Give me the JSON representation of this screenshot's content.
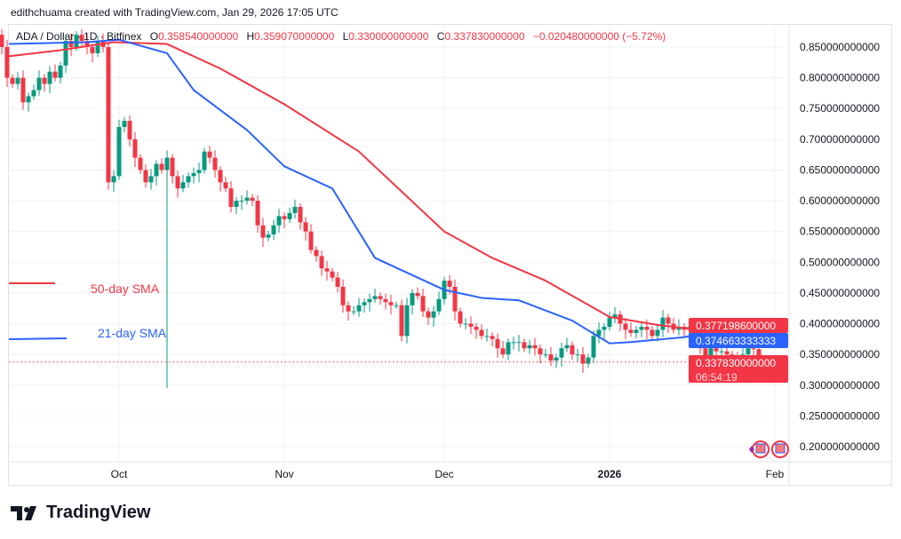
{
  "credit": "edithchuama created with TradingView.com, Jan 29, 2026 17:05 UTC",
  "legend": {
    "symbol": "ADA / Dollar · 1D · Bitfinex",
    "o_label": "O",
    "o": "0.358540000000",
    "h_label": "H",
    "h": "0.359070000000",
    "l_label": "L",
    "l": "0.330000000000",
    "c_label": "C",
    "c": "0.337830000000",
    "change": "−0.020480000000 (−5.72%)"
  },
  "sma_labels": {
    "sma50": "50-day SMA",
    "sma21": "21-day SMA"
  },
  "price_tags": {
    "sma50": "0.377198600000",
    "sma21": "0.374663333333",
    "last": "0.337830000000",
    "countdown": "06:54:19"
  },
  "logo": "TradingView",
  "colors": {
    "up": "#089981",
    "down": "#f23645",
    "sma50": "#f23645",
    "sma21": "#2962ff",
    "grid": "#f0f3fa"
  },
  "chart_data": {
    "type": "candlestick",
    "symbol": "ADA / Dollar",
    "interval": "1D",
    "exchange": "Bitfinex",
    "last_date": "2026-01-29",
    "ylim": [
      0.17,
      0.87
    ],
    "y_ticks": [
      "0.850000000000",
      "0.800000000000",
      "0.750000000000",
      "0.700000000000",
      "0.650000000000",
      "0.600000000000",
      "0.550000000000",
      "0.500000000000",
      "0.450000000000",
      "0.400000000000",
      "0.350000000000",
      "0.300000000000",
      "0.250000000000",
      "0.200000000000"
    ],
    "x_ticks": [
      {
        "label": "Oct",
        "date": "2025-10-01"
      },
      {
        "label": "Nov",
        "date": "2025-11-01"
      },
      {
        "label": "Dec",
        "date": "2025-12-01"
      },
      {
        "label": "2026",
        "date": "2026-01-01"
      },
      {
        "label": "Feb",
        "date": "2026-02-01"
      }
    ],
    "first_open": 0.85,
    "closes": [
      0.86,
      0.87,
      0.88,
      0.86,
      0.87,
      0.89,
      0.88,
      0.87,
      0.86,
      0.87,
      0.85,
      0.8,
      0.79,
      0.8,
      0.76,
      0.77,
      0.78,
      0.8,
      0.79,
      0.81,
      0.8,
      0.82,
      0.86,
      0.85,
      0.87,
      0.86,
      0.85,
      0.84,
      0.86,
      0.85,
      0.63,
      0.64,
      0.72,
      0.73,
      0.7,
      0.67,
      0.65,
      0.63,
      0.64,
      0.66,
      0.65,
      0.67,
      0.64,
      0.62,
      0.63,
      0.64,
      0.645,
      0.65,
      0.68,
      0.67,
      0.65,
      0.63,
      0.62,
      0.59,
      0.6,
      0.6,
      0.605,
      0.6,
      0.56,
      0.54,
      0.545,
      0.56,
      0.575,
      0.57,
      0.58,
      0.59,
      0.565,
      0.55,
      0.52,
      0.51,
      0.49,
      0.485,
      0.475,
      0.46,
      0.43,
      0.42,
      0.42,
      0.43,
      0.435,
      0.44,
      0.445,
      0.44,
      0.435,
      0.43,
      0.43,
      0.38,
      0.43,
      0.45,
      0.445,
      0.42,
      0.41,
      0.42,
      0.44,
      0.47,
      0.46,
      0.42,
      0.4,
      0.4,
      0.395,
      0.39,
      0.38,
      0.38,
      0.375,
      0.36,
      0.35,
      0.37,
      0.37,
      0.37,
      0.36,
      0.365,
      0.36,
      0.35,
      0.35,
      0.34,
      0.345,
      0.36,
      0.365,
      0.35,
      0.35,
      0.335,
      0.345,
      0.38,
      0.39,
      0.395,
      0.41,
      0.415,
      0.4,
      0.39,
      0.385,
      0.39,
      0.395,
      0.39,
      0.38,
      0.39,
      0.41,
      0.4,
      0.39,
      0.395,
      0.39,
      0.395,
      0.39,
      0.36,
      0.345,
      0.36,
      0.355,
      0.355,
      0.35,
      0.345,
      0.34,
      0.35,
      0.36,
      0.3585,
      0.3378
    ],
    "notable_low": {
      "date": "2025-10-10",
      "value": 0.295
    },
    "series": [
      {
        "name": "50-day SMA",
        "points": [
          [
            "2025-09-10",
            0.835
          ],
          [
            "2025-09-20",
            0.845
          ],
          [
            "2025-09-30",
            0.858
          ],
          [
            "2025-10-10",
            0.855
          ],
          [
            "2025-10-20",
            0.815
          ],
          [
            "2025-11-01",
            0.757
          ],
          [
            "2025-11-15",
            0.68
          ],
          [
            "2025-12-01",
            0.55
          ],
          [
            "2025-12-10",
            0.507
          ],
          [
            "2025-12-20",
            0.47
          ],
          [
            "2026-01-01",
            0.411
          ],
          [
            "2026-01-10",
            0.398
          ],
          [
            "2026-01-20",
            0.388
          ],
          [
            "2026-01-29",
            0.3772
          ]
        ]
      },
      {
        "name": "21-day SMA",
        "points": [
          [
            "2025-09-10",
            0.855
          ],
          [
            "2025-09-25",
            0.858
          ],
          [
            "2025-10-01",
            0.862
          ],
          [
            "2025-10-10",
            0.84
          ],
          [
            "2025-10-15",
            0.78
          ],
          [
            "2025-10-25",
            0.715
          ],
          [
            "2025-11-01",
            0.656
          ],
          [
            "2025-11-10",
            0.62
          ],
          [
            "2025-11-18",
            0.507
          ],
          [
            "2025-12-01",
            0.455
          ],
          [
            "2025-12-08",
            0.442
          ],
          [
            "2025-12-15",
            0.438
          ],
          [
            "2025-12-25",
            0.405
          ],
          [
            "2026-01-01",
            0.368
          ],
          [
            "2026-01-05",
            0.37
          ],
          [
            "2026-01-15",
            0.378
          ],
          [
            "2026-01-20",
            0.387
          ],
          [
            "2026-01-25",
            0.386
          ],
          [
            "2026-01-29",
            0.3747
          ]
        ]
      }
    ]
  }
}
